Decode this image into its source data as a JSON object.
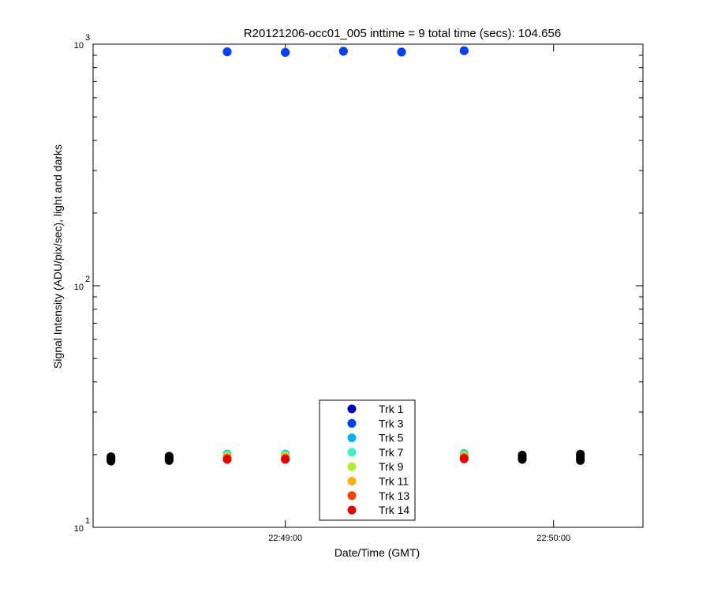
{
  "chart_data": {
    "type": "scatter",
    "title": "R20121206-occ01_005 inttime = 9 total time (secs): 104.656",
    "xlabel": "Date/Time (GMT)",
    "ylabel": "Signal Intensity (ADU/pix/sec), light and darks",
    "yscale": "log",
    "ylim": [
      10,
      1000
    ],
    "xlim": [
      "22:48:17",
      "22:50:20"
    ],
    "x_ticks": [
      {
        "t": "22:49:00",
        "label": "22:49:00"
      },
      {
        "t": "22:50:00",
        "label": "22:50:00"
      }
    ],
    "y_ticks": [
      {
        "value": 10,
        "base": "10",
        "exp": "1"
      },
      {
        "value": 100,
        "base": "10",
        "exp": "2"
      },
      {
        "value": 1000,
        "base": "10",
        "exp": "3"
      }
    ],
    "legend_position": "bottom-center",
    "grid": false,
    "light_times": [
      "22:48:47",
      "22:49:00",
      "22:49:13",
      "22:49:26",
      "22:49:40"
    ],
    "dark_times": [
      "22:48:21",
      "22:48:34",
      "22:49:53",
      "22:50:06"
    ],
    "series": [
      {
        "name": "Trk 1",
        "color": "#0000b4",
        "x": [
          "22:48:47",
          "22:49:00",
          "22:49:13",
          "22:49:26",
          "22:49:40"
        ],
        "y": [
          930,
          925,
          935,
          928,
          940
        ]
      },
      {
        "name": "Trk 3",
        "color": "#0040ff",
        "x": [
          "22:48:47",
          "22:49:00",
          "22:49:13",
          "22:49:26",
          "22:49:40"
        ],
        "y": [
          930,
          925,
          935,
          928,
          940
        ]
      },
      {
        "name": "Trk 5",
        "color": "#00b0f0",
        "x": [
          "22:48:47",
          "22:49:00",
          "22:49:40"
        ],
        "y": [
          20.1,
          20.1,
          20.2
        ]
      },
      {
        "name": "Trk 7",
        "color": "#40f0c0",
        "x": [
          "22:48:47",
          "22:49:00",
          "22:49:40"
        ],
        "y": [
          19.9,
          19.9,
          20.0
        ]
      },
      {
        "name": "Trk 9",
        "color": "#b0f030",
        "x": [
          "22:48:47",
          "22:49:00",
          "22:49:40"
        ],
        "y": [
          19.7,
          19.7,
          19.8
        ]
      },
      {
        "name": "Trk 11",
        "color": "#ffb000",
        "x": [
          "22:48:47",
          "22:49:00",
          "22:49:40"
        ],
        "y": [
          19.5,
          19.5,
          19.6
        ]
      },
      {
        "name": "Trk 13",
        "color": "#ff4000",
        "x": [
          "22:48:47",
          "22:49:00",
          "22:49:40"
        ],
        "y": [
          19.3,
          19.3,
          19.4
        ]
      },
      {
        "name": "Trk 14",
        "color": "#e00000",
        "x": [
          "22:48:47",
          "22:49:00",
          "22:49:40"
        ],
        "y": [
          19.1,
          19.1,
          19.2
        ]
      }
    ],
    "darks": {
      "color": "#000000",
      "x": [
        "22:48:21",
        "22:48:34",
        "22:49:53",
        "22:50:06"
      ],
      "y": [
        [
          18.8,
          19.0,
          19.2,
          19.4,
          19.6
        ],
        [
          18.9,
          19.1,
          19.3,
          19.5,
          19.7
        ],
        [
          19.1,
          19.3,
          19.5,
          19.7,
          19.9
        ],
        [
          18.9,
          19.2,
          19.5,
          19.8,
          20.1
        ]
      ]
    }
  }
}
